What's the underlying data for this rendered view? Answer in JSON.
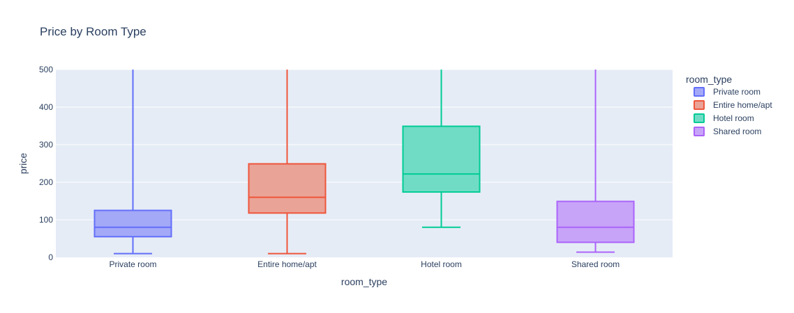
{
  "chart_data": {
    "type": "box",
    "title": "Price by Room Type",
    "xlabel": "room_type",
    "ylabel": "price",
    "ylim": [
      0,
      500
    ],
    "yticks": [
      0,
      100,
      200,
      300,
      400,
      500
    ],
    "grid": true,
    "legend": {
      "title": "room_type",
      "position": "right"
    },
    "categories": [
      "Private room",
      "Entire home/apt",
      "Hotel room",
      "Shared room"
    ],
    "series": [
      {
        "name": "Private room",
        "color": "#636efa",
        "fill": "#a3a9f7",
        "min": 10,
        "q1": 55,
        "median": 80,
        "q3": 125,
        "max": 500
      },
      {
        "name": "Entire home/apt",
        "color": "#ef553b",
        "fill": "#e9a397",
        "min": 10,
        "q1": 118,
        "median": 160,
        "q3": 249,
        "max": 500
      },
      {
        "name": "Hotel room",
        "color": "#00cc96",
        "fill": "#71dcc6",
        "min": 80,
        "q1": 174,
        "median": 222,
        "q3": 349,
        "max": 500
      },
      {
        "name": "Shared room",
        "color": "#ab63fa",
        "fill": "#c8a4f8",
        "min": 14,
        "q1": 40,
        "median": 80,
        "q3": 149,
        "max": 500
      }
    ]
  }
}
